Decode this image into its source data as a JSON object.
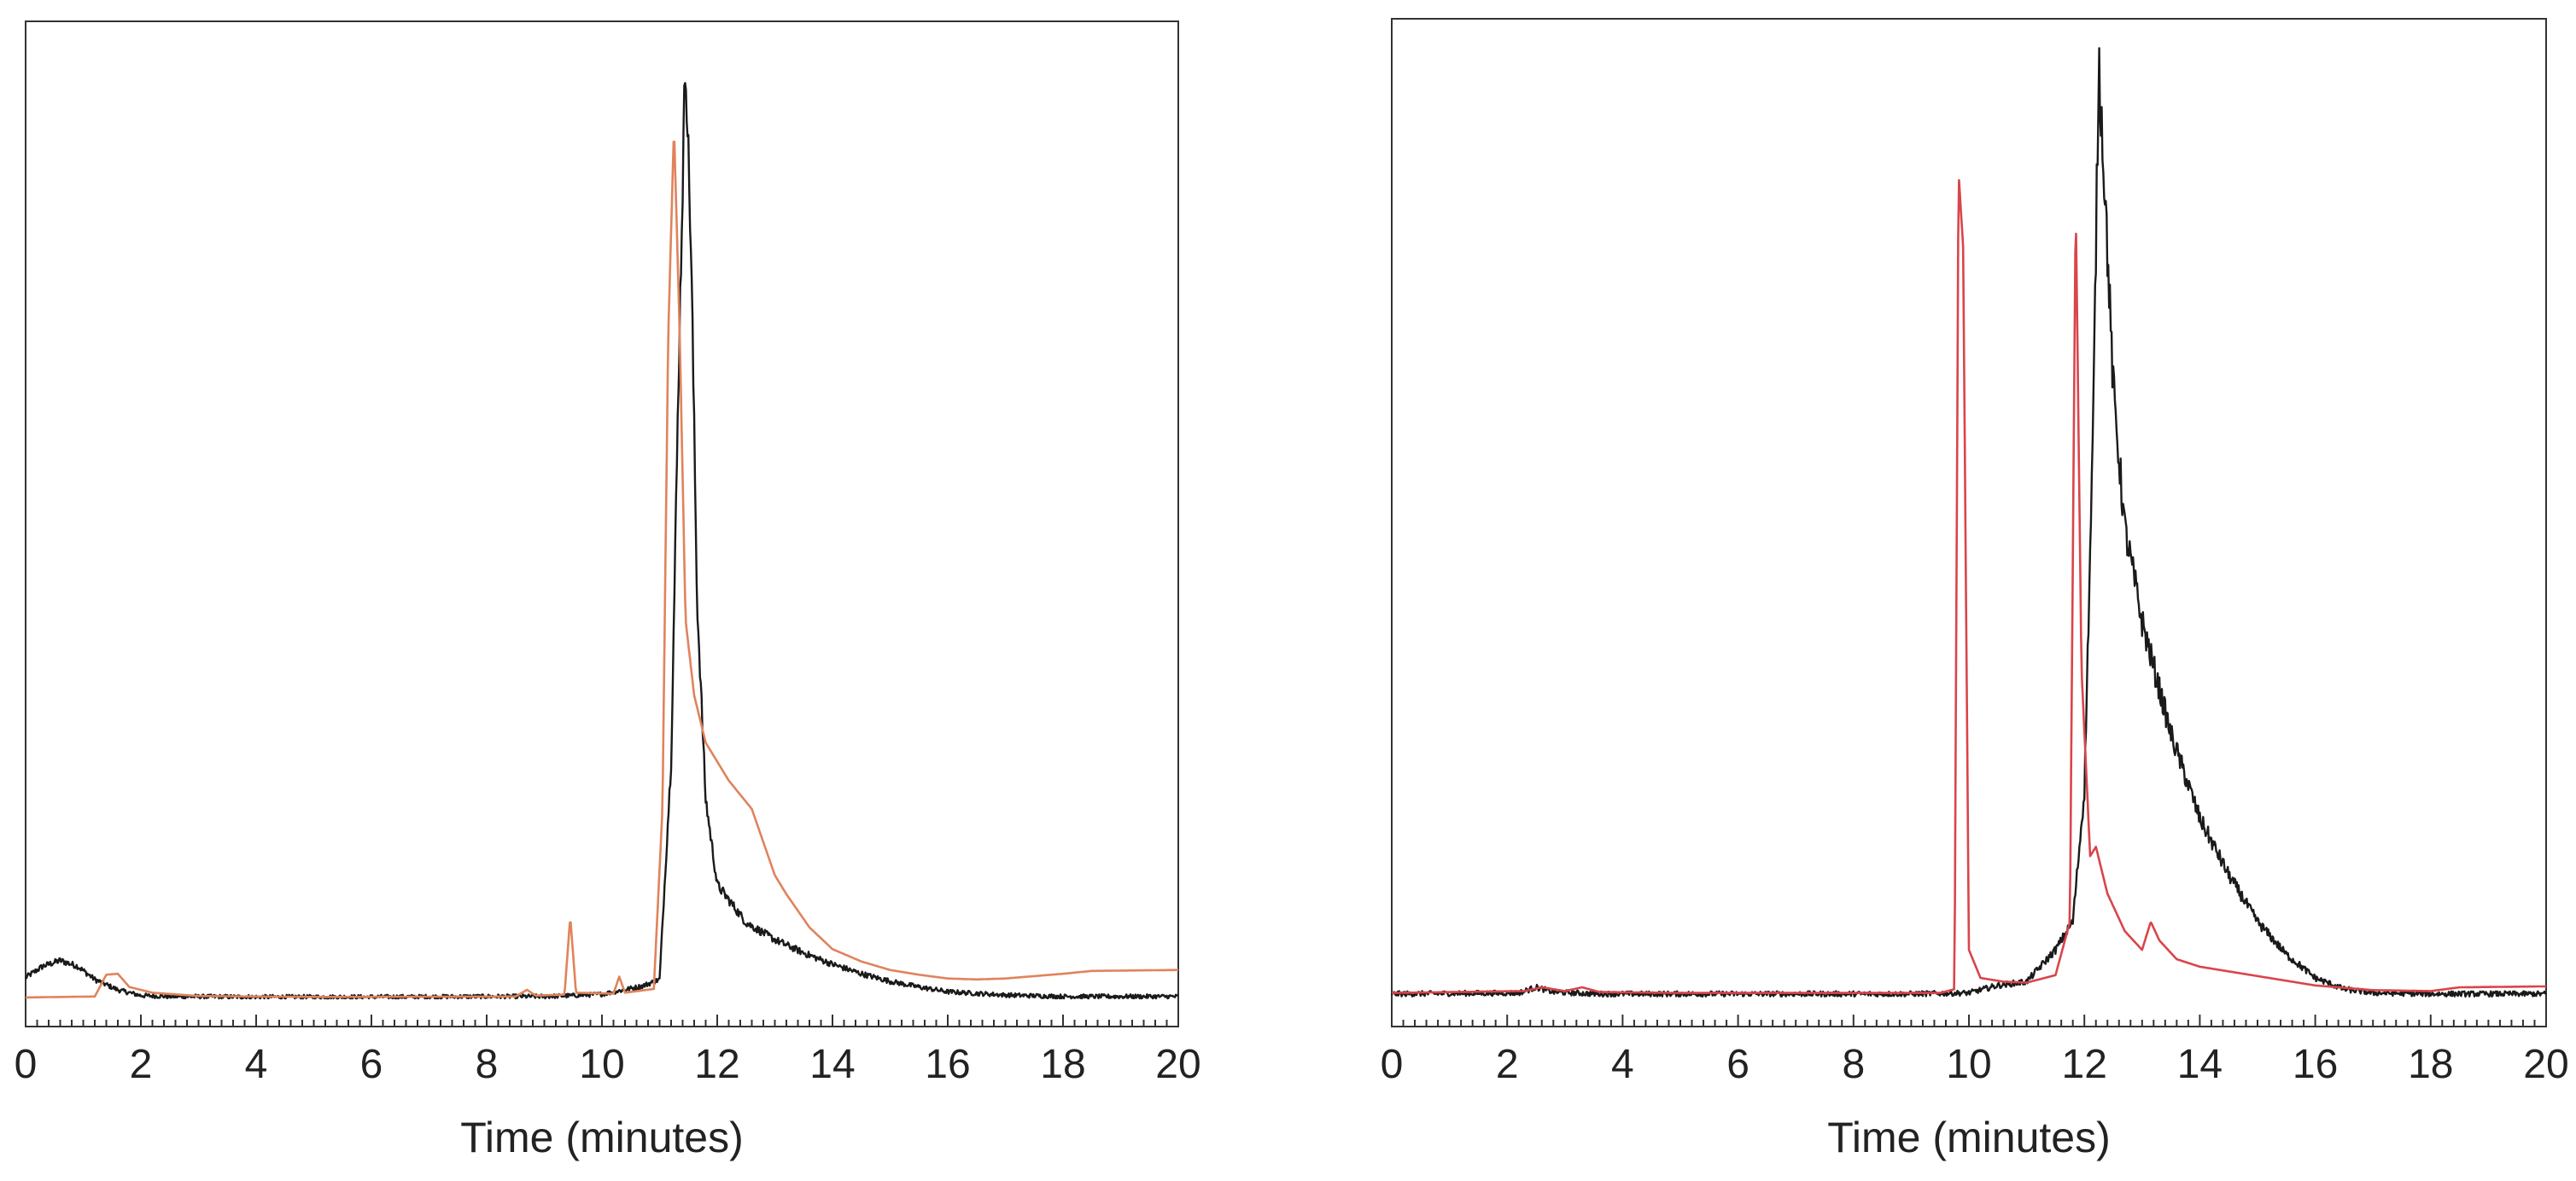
{
  "chart_data": [
    {
      "type": "line",
      "xlabel": "Time (minutes)",
      "ylabel": "",
      "xlim": [
        0,
        20
      ],
      "ylim": [
        0,
        100
      ],
      "x_ticks": [
        "0",
        "2",
        "4",
        "6",
        "8",
        "10",
        "12",
        "14",
        "16",
        "18",
        "20"
      ],
      "grid": false,
      "legend": "none",
      "series": [
        {
          "color": "#1a1a1a",
          "noise": 0.45,
          "points": [
            [
              0,
              2.2
            ],
            [
              0.3,
              3.4
            ],
            [
              0.6,
              4.0
            ],
            [
              0.9,
              3.4
            ],
            [
              1.2,
              2.0
            ],
            [
              1.6,
              0.9
            ],
            [
              2.0,
              0.3
            ],
            [
              2.5,
              0.2
            ],
            [
              4,
              0.15
            ],
            [
              6,
              0.15
            ],
            [
              8,
              0.2
            ],
            [
              9,
              0.2
            ],
            [
              9.5,
              0.3
            ],
            [
              10,
              0.45
            ],
            [
              10.3,
              0.8
            ],
            [
              10.7,
              1.3
            ],
            [
              11.0,
              2.0
            ],
            [
              11.2,
              25
            ],
            [
              11.35,
              72
            ],
            [
              11.45,
              100
            ],
            [
              11.55,
              78
            ],
            [
              11.65,
              42
            ],
            [
              11.8,
              21
            ],
            [
              12.0,
              12
            ],
            [
              12.5,
              8
            ],
            [
              13,
              6.2
            ],
            [
              13.5,
              4.8
            ],
            [
              14,
              3.6
            ],
            [
              14.5,
              2.6
            ],
            [
              15,
              1.8
            ],
            [
              15.5,
              1.2
            ],
            [
              16,
              0.7
            ],
            [
              17,
              0.35
            ],
            [
              18,
              0.2
            ],
            [
              20,
              0.2
            ]
          ]
        },
        {
          "color": "#e0835c",
          "noise": 0,
          "points": [
            [
              0,
              0.1
            ],
            [
              1.2,
              0.2
            ],
            [
              1.4,
              2.5
            ],
            [
              1.6,
              2.6
            ],
            [
              1.8,
              1.2
            ],
            [
              2.2,
              0.6
            ],
            [
              3,
              0.25
            ],
            [
              5,
              0.15
            ],
            [
              8.5,
              0.2
            ],
            [
              8.7,
              0.9
            ],
            [
              8.85,
              0.3
            ],
            [
              9.35,
              0.4
            ],
            [
              9.45,
              8.6
            ],
            [
              9.55,
              0.6
            ],
            [
              10.2,
              0.5
            ],
            [
              10.3,
              2.3
            ],
            [
              10.4,
              0.6
            ],
            [
              10.9,
              1.0
            ],
            [
              11.05,
              20
            ],
            [
              11.15,
              70
            ],
            [
              11.25,
              92
            ],
            [
              11.35,
              70
            ],
            [
              11.45,
              40
            ],
            [
              11.6,
              32
            ],
            [
              11.8,
              27
            ],
            [
              12.2,
              23
            ],
            [
              12.6,
              20
            ],
            [
              13.0,
              13
            ],
            [
              13.1,
              12
            ],
            [
              13.2,
              11
            ],
            [
              13.6,
              7.5
            ],
            [
              14,
              5.2
            ],
            [
              14.5,
              3.9
            ],
            [
              15,
              3.0
            ],
            [
              15.5,
              2.5
            ],
            [
              16,
              2.1
            ],
            [
              16.5,
              2.0
            ],
            [
              17,
              2.1
            ],
            [
              18,
              2.6
            ],
            [
              18.5,
              2.9
            ],
            [
              20,
              3.0
            ]
          ]
        }
      ]
    },
    {
      "type": "line",
      "xlabel": "Time (minutes)",
      "ylabel": "",
      "xlim": [
        0,
        20
      ],
      "ylim": [
        0,
        100
      ],
      "x_ticks": [
        "0",
        "2",
        "4",
        "6",
        "8",
        "10",
        "12",
        "14",
        "16",
        "18",
        "20"
      ],
      "grid": false,
      "legend": "none",
      "series": [
        {
          "color": "#1a1a1a",
          "noise": 0.55,
          "points": [
            [
              0,
              0.3
            ],
            [
              2.2,
              0.4
            ],
            [
              2.5,
              1.0
            ],
            [
              2.8,
              0.5
            ],
            [
              3.5,
              0.3
            ],
            [
              6,
              0.3
            ],
            [
              9,
              0.3
            ],
            [
              10,
              0.4
            ],
            [
              10.5,
              1.2
            ],
            [
              11,
              1.6
            ],
            [
              11.5,
              5
            ],
            [
              11.8,
              8
            ],
            [
              12.0,
              22
            ],
            [
              12.15,
              60
            ],
            [
              12.25,
              100
            ],
            [
              12.35,
              87
            ],
            [
              12.5,
              65
            ],
            [
              12.7,
              50
            ],
            [
              13,
              40
            ],
            [
              13.5,
              28
            ],
            [
              14,
              19
            ],
            [
              14.5,
              13
            ],
            [
              15,
              8
            ],
            [
              15.5,
              4.5
            ],
            [
              16,
              2.0
            ],
            [
              16.5,
              0.8
            ],
            [
              17,
              0.4
            ],
            [
              18,
              0.3
            ],
            [
              20,
              0.3
            ]
          ]
        },
        {
          "color": "#d9454a",
          "noise": 0,
          "points": [
            [
              0,
              0.4
            ],
            [
              2.3,
              0.6
            ],
            [
              2.6,
              1.0
            ],
            [
              3.0,
              0.6
            ],
            [
              3.3,
              1.0
            ],
            [
              3.6,
              0.5
            ],
            [
              5,
              0.4
            ],
            [
              9.5,
              0.4
            ],
            [
              9.75,
              0.8
            ],
            [
              9.82,
              88
            ],
            [
              9.9,
              80
            ],
            [
              10.0,
              5
            ],
            [
              10.2,
              2.0
            ],
            [
              10.6,
              1.6
            ],
            [
              11,
              1.5
            ],
            [
              11.5,
              2.3
            ],
            [
              11.75,
              8
            ],
            [
              11.85,
              85
            ],
            [
              11.95,
              35
            ],
            [
              12.1,
              15
            ],
            [
              12.2,
              16
            ],
            [
              12.4,
              11
            ],
            [
              12.7,
              7
            ],
            [
              13.0,
              5
            ],
            [
              13.15,
              8
            ],
            [
              13.3,
              6
            ],
            [
              13.6,
              4
            ],
            [
              14,
              3.2
            ],
            [
              15,
              2.2
            ],
            [
              16,
              1.2
            ],
            [
              17,
              0.7
            ],
            [
              18,
              0.6
            ],
            [
              18.5,
              1.0
            ],
            [
              20,
              1.1
            ]
          ]
        }
      ]
    }
  ]
}
